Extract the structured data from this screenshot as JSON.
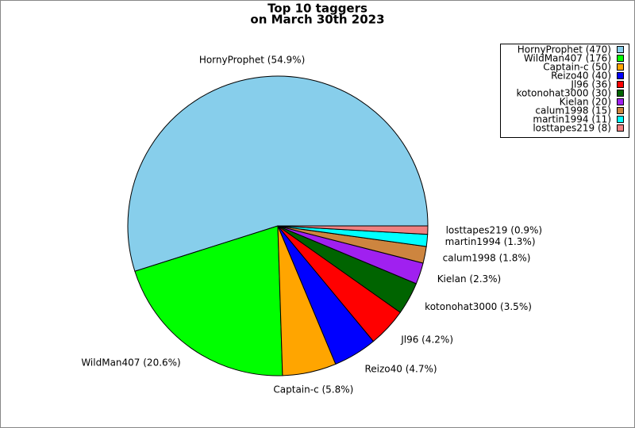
{
  "chart_data": {
    "type": "pie",
    "title": "Top 10 taggers",
    "subtitle": "on March 30th 2023",
    "categories": [
      "HornyProphet (470)",
      "WildMan407 (176)",
      "Captain-c (50)",
      "Reizo40 (40)",
      "Jl96 (36)",
      "kotonohat3000 (30)",
      "Kielan (20)",
      "calum1998 (15)",
      "martin1994 (11)",
      "losttapes219 (8)"
    ],
    "values": [
      54.9,
      20.6,
      5.8,
      4.7,
      4.2,
      3.5,
      2.3,
      1.8,
      1.3,
      0.9
    ],
    "value_labels": [
      "HornyProphet (54.9%)",
      "WildMan407 (20.6%)",
      "Captain-c (5.8%)",
      "Reizo40 (4.7%)",
      "Jl96 (4.2%)",
      "kotonohat3000 (3.5%)",
      "Kielan (2.3%)",
      "calum1998 (1.8%)",
      "martin1994 (1.3%)",
      "losttapes219 (0.9%)"
    ],
    "colors": [
      "#87ceeb",
      "#00ff00",
      "#ffa500",
      "#0000ff",
      "#ff0000",
      "#006400",
      "#a020f0",
      "#cd853f",
      "#00ffff",
      "#f08080"
    ],
    "legend": "upper right"
  }
}
